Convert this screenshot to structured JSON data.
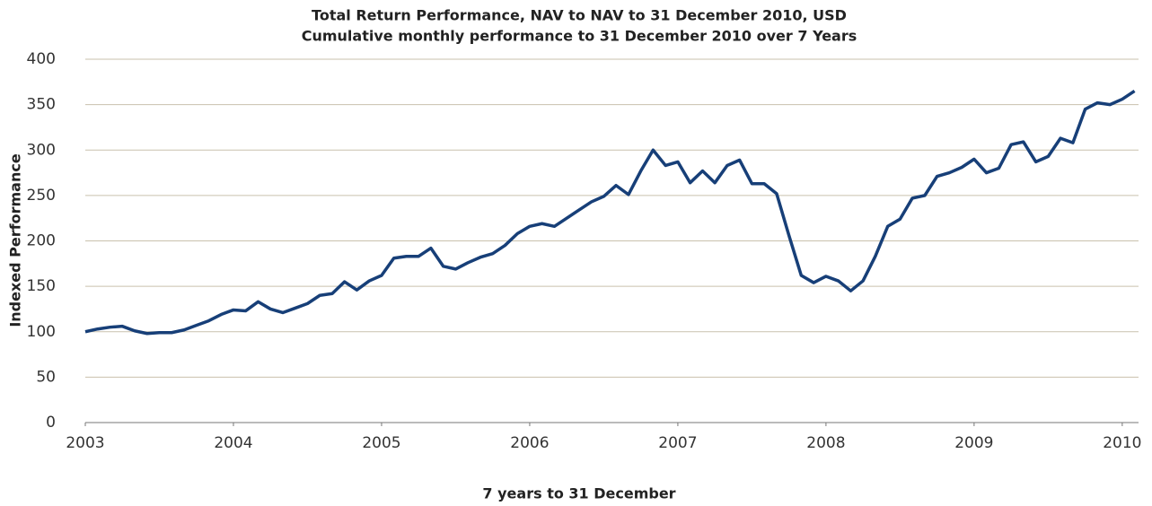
{
  "chart_data": {
    "type": "line",
    "title": "Total Return Performance, NAV to NAV to 31 December 2010, USD",
    "subtitle": "Cumulative monthly performance to 31 December 2010 over 7 Years",
    "x_label": "7 years to 31 December",
    "y_label": "Indexed Performance",
    "x": [
      2003,
      2003.083,
      2003.167,
      2003.25,
      2003.333,
      2003.417,
      2003.5,
      2003.583,
      2003.667,
      2003.75,
      2003.833,
      2003.917,
      2004,
      2004.083,
      2004.167,
      2004.25,
      2004.333,
      2004.417,
      2004.5,
      2004.583,
      2004.667,
      2004.75,
      2004.833,
      2004.917,
      2005,
      2005.083,
      2005.167,
      2005.25,
      2005.333,
      2005.417,
      2005.5,
      2005.583,
      2005.667,
      2005.75,
      2005.833,
      2005.917,
      2006,
      2006.083,
      2006.167,
      2006.25,
      2006.333,
      2006.417,
      2006.5,
      2006.583,
      2006.667,
      2006.75,
      2006.833,
      2006.917,
      2007,
      2007.083,
      2007.167,
      2007.25,
      2007.333,
      2007.417,
      2007.5,
      2007.583,
      2007.667,
      2007.75,
      2007.833,
      2007.917,
      2008,
      2008.083,
      2008.167,
      2008.25,
      2008.333,
      2008.417,
      2008.5,
      2008.583,
      2008.667,
      2008.75,
      2008.833,
      2008.917,
      2009,
      2009.083,
      2009.167,
      2009.25,
      2009.333,
      2009.417,
      2009.5,
      2009.583,
      2009.667,
      2009.75,
      2009.833,
      2009.917,
      2010,
      2010.083
    ],
    "series": [
      {
        "name": "Indexed Performance",
        "color": "#173f78",
        "values": [
          100,
          103,
          105,
          106,
          101,
          98,
          99,
          99,
          102,
          107,
          112,
          119,
          124,
          123,
          133,
          125,
          121,
          126,
          131,
          140,
          142,
          155,
          146,
          156,
          162,
          181,
          183,
          183,
          192,
          172,
          169,
          176,
          182,
          186,
          195,
          208,
          216,
          219,
          216,
          225,
          234,
          243,
          249,
          261,
          251,
          277,
          300,
          283,
          287,
          264,
          277,
          264,
          283,
          289,
          263,
          263,
          252,
          206,
          162,
          154,
          161,
          156,
          145,
          156,
          183,
          216,
          224,
          247,
          250,
          271,
          275,
          281,
          290,
          275,
          280,
          306,
          309,
          287,
          293,
          313,
          308,
          345,
          352,
          350,
          356,
          365
        ]
      }
    ],
    "xlim": [
      2003,
      2010.11
    ],
    "xticks": [
      2003,
      2004,
      2005,
      2006,
      2007,
      2008,
      2009,
      2010
    ],
    "ylim": [
      0,
      400
    ],
    "yticks": [
      0,
      50,
      100,
      150,
      200,
      250,
      300,
      350,
      400
    ],
    "grid": true
  }
}
